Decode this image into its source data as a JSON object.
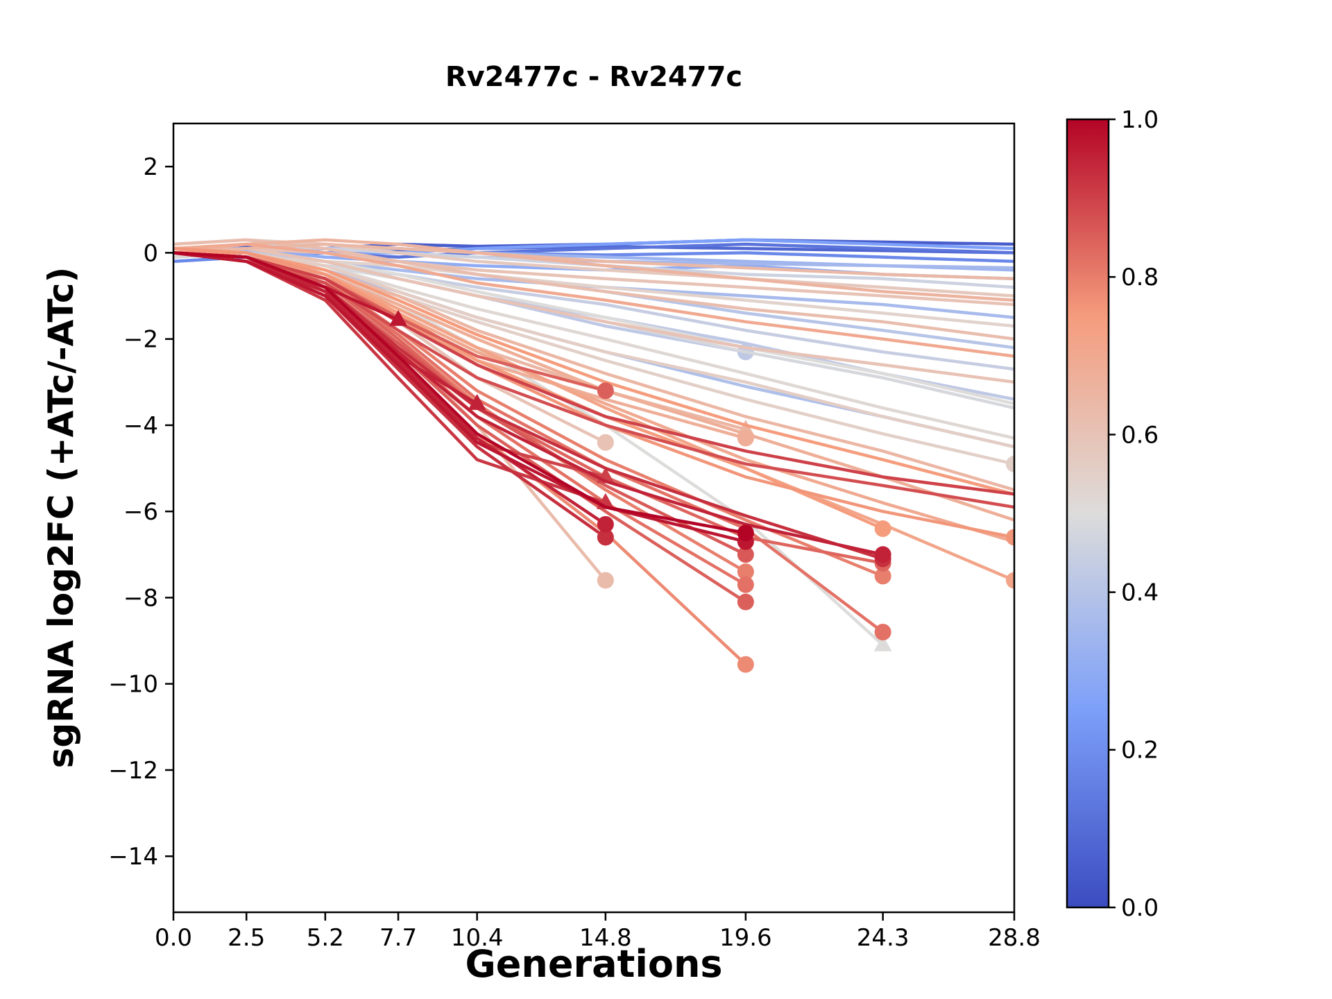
{
  "chart_data": {
    "type": "line",
    "title": "Rv2477c - Rv2477c",
    "xlabel": "Generations",
    "ylabel": "sgRNA log2FC (+ATc/-ATc)",
    "grid": false,
    "xlim": [
      0,
      28.8
    ],
    "ylim": [
      -15.3,
      3.0
    ],
    "x_ticks": [
      0.0,
      2.5,
      5.2,
      7.7,
      10.4,
      14.8,
      19.6,
      24.3,
      28.8
    ],
    "x_tick_labels": [
      "0.0",
      "2.5",
      "5.2",
      "7.7",
      "10.4",
      "14.8",
      "19.6",
      "24.3",
      "28.8"
    ],
    "y_ticks": [
      2,
      0,
      -2,
      -4,
      -6,
      -8,
      -10,
      -12,
      -14
    ],
    "y_tick_labels": [
      "2",
      "0",
      "−2",
      "−4",
      "−6",
      "−8",
      "−10",
      "−12",
      "−14"
    ],
    "colorbar": {
      "min": 0.0,
      "max": 1.0,
      "ticks": [
        0.0,
        0.2,
        0.4,
        0.6,
        0.8,
        1.0
      ],
      "tick_labels": [
        "0.0",
        "0.2",
        "0.4",
        "0.6",
        "0.8",
        "1.0"
      ],
      "colormap": "coolwarm"
    },
    "colormap_stops": [
      {
        "t": 0.0,
        "color": "#3b4cc0"
      },
      {
        "t": 0.25,
        "color": "#7c9ff9"
      },
      {
        "t": 0.5,
        "color": "#dddcdb"
      },
      {
        "t": 0.75,
        "color": "#f59c7d"
      },
      {
        "t": 1.0,
        "color": "#b40426"
      }
    ],
    "x": [
      0,
      2.5,
      5.2,
      7.7,
      10.4,
      14.8,
      19.6,
      24.3,
      28.8
    ],
    "series": [
      {
        "c": 0.05,
        "y": [
          0.1,
          0.15,
          0.1,
          0.2,
          0.15,
          0.2,
          0.3,
          0.25,
          0.2
        ]
      },
      {
        "c": 0.08,
        "y": [
          -0.1,
          0.0,
          0.1,
          0.05,
          0.1,
          0.15,
          0.1,
          0.05,
          0.0
        ]
      },
      {
        "c": 0.12,
        "y": [
          0.0,
          0.1,
          0.0,
          -0.1,
          0.0,
          0.1,
          0.2,
          0.1,
          0.0
        ]
      },
      {
        "c": 0.18,
        "y": [
          -0.2,
          -0.1,
          0.0,
          0.1,
          0.0,
          -0.05,
          0.0,
          -0.1,
          -0.2
        ]
      },
      {
        "c": 0.25,
        "y": [
          0.1,
          0.1,
          0.0,
          0.0,
          0.1,
          0.2,
          0.3,
          0.2,
          0.1
        ]
      },
      {
        "c": 0.3,
        "y": [
          0.0,
          0.1,
          -0.1,
          -0.2,
          -0.3,
          -0.4,
          -0.3,
          -0.5,
          -0.6
        ]
      },
      {
        "c": 0.33,
        "y": [
          0.0,
          0.0,
          0.1,
          0.1,
          0.0,
          -0.1,
          -0.2,
          -0.3,
          -0.4
        ]
      },
      {
        "c": 0.35,
        "y": [
          0.0,
          0.05,
          0.1,
          0.0,
          -0.1,
          -0.2,
          -0.25,
          -0.3,
          -0.35
        ]
      },
      {
        "c": 0.36,
        "y": [
          -0.1,
          0.0,
          -0.2,
          -0.4,
          -0.6,
          -0.8,
          -1.0,
          -1.2,
          -1.5
        ]
      },
      {
        "c": 0.38,
        "y": [
          0.0,
          -0.1,
          -0.4,
          -0.9,
          -1.5,
          -2.3,
          -3.1,
          -3.8,
          -4.5
        ]
      },
      {
        "c": 0.4,
        "y": [
          0.0,
          0.1,
          0.0,
          -0.2,
          -0.5,
          -0.9,
          -1.4,
          -1.8,
          -2.2
        ]
      },
      {
        "c": 0.42,
        "y": [
          0.1,
          0.0,
          -0.2,
          -0.6,
          -1.0,
          -1.5,
          -2.1,
          -2.8,
          -3.4
        ]
      },
      {
        "c": 0.42,
        "y": [
          0.0,
          0.0,
          -0.2,
          -0.6,
          -1.0,
          -1.7,
          -2.3
        ],
        "marker": "circle"
      },
      {
        "c": 0.44,
        "y": [
          0.0,
          -0.1,
          -0.3,
          -0.5,
          -0.8,
          -1.2,
          -1.8,
          -2.3,
          -2.7
        ]
      },
      {
        "c": 0.46,
        "y": [
          0.1,
          0.2,
          0.1,
          0.0,
          -0.1,
          -0.3,
          -0.5,
          -0.6,
          -0.8
        ]
      },
      {
        "c": 0.48,
        "y": [
          0.0,
          -0.1,
          -0.3,
          -0.6,
          -1.0,
          -1.6,
          -2.3,
          -2.9,
          -3.6
        ]
      },
      {
        "c": 0.5,
        "y": [
          0.0,
          0.1,
          -0.2,
          -0.5,
          -0.9,
          -1.5,
          -2.2,
          -2.8,
          -3.5
        ]
      },
      {
        "c": 0.5,
        "y": [
          0.0,
          -0.1,
          -0.4,
          -1.2,
          -2.2,
          -4.0,
          -6.2,
          -9.1
        ],
        "marker": "triangle"
      },
      {
        "c": 0.52,
        "y": [
          -0.1,
          0.0,
          -0.3,
          -0.8,
          -1.3,
          -2.0,
          -2.8,
          -3.6,
          -4.3
        ]
      },
      {
        "c": 0.54,
        "y": [
          0.0,
          -0.1,
          -0.2,
          -0.3,
          -0.5,
          -0.8,
          -1.1,
          -1.4,
          -1.7
        ]
      },
      {
        "c": 0.55,
        "y": [
          0.0,
          -0.2,
          -0.5,
          -1.0,
          -1.6,
          -2.5,
          -3.4,
          -4.2,
          -4.9
        ],
        "marker": "circle"
      },
      {
        "c": 0.56,
        "y": [
          0.1,
          0.0,
          -0.3,
          -0.9,
          -1.5,
          -2.3,
          -3.0,
          -3.8,
          -4.5
        ]
      },
      {
        "c": 0.58,
        "y": [
          0.2,
          0.3,
          0.2,
          0.0,
          -0.2,
          -0.4,
          -0.6,
          -0.8,
          -1.0
        ]
      },
      {
        "c": 0.6,
        "y": [
          0.0,
          0.1,
          -0.2,
          -0.6,
          -1.0,
          -1.6,
          -2.2,
          -2.6,
          -3.0
        ]
      },
      {
        "c": 0.6,
        "y": [
          0.0,
          0.1,
          0.0,
          -0.2,
          -0.4,
          -0.6,
          -0.8,
          -1.0,
          -1.2
        ]
      },
      {
        "c": 0.6,
        "y": [
          0.0,
          -0.1,
          -0.6,
          -1.6,
          -2.9,
          -4.4
        ],
        "marker": "circle"
      },
      {
        "c": 0.62,
        "y": [
          0.2,
          0.3,
          0.1,
          -0.2,
          -0.5,
          -0.9,
          -1.3,
          -1.6,
          -2.0
        ]
      },
      {
        "c": 0.63,
        "y": [
          0.0,
          -0.2,
          -0.8,
          -2.2,
          -4.0,
          -7.6
        ],
        "marker": "circle"
      },
      {
        "c": 0.64,
        "y": [
          0.0,
          0.1,
          0.2,
          0.1,
          0.0,
          -0.2,
          -0.35,
          -0.5,
          -0.6
        ]
      },
      {
        "c": 0.65,
        "y": [
          0.0,
          -0.1,
          -0.4,
          -1.0,
          -1.8,
          -2.8,
          -3.8,
          -4.6,
          -5.5
        ]
      },
      {
        "c": 0.65,
        "y": [
          0.0,
          -0.1,
          -0.5,
          -1.3,
          -2.2,
          -3.2,
          -4.1
        ],
        "marker": "triangle"
      },
      {
        "c": 0.66,
        "y": [
          0.0,
          0.2,
          0.3,
          0.2,
          0.0,
          -0.3,
          -0.6,
          -0.9,
          -1.1
        ]
      },
      {
        "c": 0.68,
        "y": [
          0.0,
          -0.2,
          -0.6,
          -1.5,
          -2.5,
          -3.4,
          -4.3
        ],
        "marker": "circle"
      },
      {
        "c": 0.68,
        "y": [
          0.0,
          0.0,
          -0.5,
          -1.2,
          -2.0,
          -3.2,
          -4.2,
          -5.2,
          -6.2
        ]
      },
      {
        "c": 0.7,
        "y": [
          0.0,
          -0.2,
          -0.6,
          -1.4,
          -2.3,
          -3.5,
          -4.8,
          -5.8,
          -6.7
        ]
      },
      {
        "c": 0.7,
        "y": [
          0.1,
          0.2,
          0.0,
          -0.3,
          -0.7,
          -1.1,
          -1.6,
          -2.0,
          -2.4
        ]
      },
      {
        "c": 0.72,
        "y": [
          0.0,
          -0.1,
          -0.5,
          -1.3,
          -2.2,
          -3.6,
          -5.0,
          -6.3,
          -7.6
        ],
        "marker": "circle"
      },
      {
        "c": 0.75,
        "y": [
          0.0,
          0.0,
          -0.4,
          -1.1,
          -1.9,
          -3.0,
          -4.0,
          -4.8,
          -5.6
        ]
      },
      {
        "c": 0.75,
        "y": [
          0.0,
          0.0,
          -0.5,
          -1.4,
          -2.5,
          -3.8,
          -5.0,
          -6.4
        ],
        "marker": "circle"
      },
      {
        "c": 0.76,
        "y": [
          0.1,
          0.0,
          -0.5,
          -1.5,
          -2.6,
          -4.0,
          -5.2,
          -6.0,
          -6.6
        ],
        "marker": "circle"
      },
      {
        "c": 0.78,
        "y": [
          0.0,
          -0.2,
          -0.9,
          -2.4,
          -4.2,
          -6.5,
          -9.55
        ],
        "marker": "circle"
      },
      {
        "c": 0.8,
        "y": [
          0.0,
          -0.1,
          -0.7,
          -2.0,
          -3.5,
          -5.5,
          -7.4
        ],
        "marker": "circle"
      },
      {
        "c": 0.8,
        "y": [
          0.0,
          -0.1,
          -0.6,
          -1.8,
          -3.2,
          -4.8,
          -6.2,
          -7.5
        ],
        "marker": "circle"
      },
      {
        "c": 0.82,
        "y": [
          0.0,
          -0.2,
          -0.8,
          -2.2,
          -3.8,
          -5.8,
          -7.7
        ],
        "marker": "circle"
      },
      {
        "c": 0.82,
        "y": [
          0.0,
          -0.2,
          -0.7,
          -1.9,
          -3.4,
          -5.0,
          -6.4,
          -8.8
        ],
        "marker": "circle"
      },
      {
        "c": 0.84,
        "y": [
          0.0,
          -0.1,
          -0.7,
          -2.0,
          -3.6,
          -5.2,
          -6.6,
          -7.2
        ],
        "marker": "circle"
      },
      {
        "c": 0.85,
        "y": [
          0.0,
          -0.1,
          -0.6,
          -1.5,
          -2.4,
          -3.2
        ],
        "marker": "circle"
      },
      {
        "c": 0.85,
        "y": [
          0.0,
          -0.1,
          -0.8,
          -2.3,
          -4.0,
          -6.0,
          -8.1
        ],
        "marker": "circle"
      },
      {
        "c": 0.86,
        "y": [
          0.0,
          -0.2,
          -0.8,
          -2.1,
          -3.6,
          -5.4,
          -7.0
        ],
        "marker": "circle"
      },
      {
        "c": 0.88,
        "y": [
          0.0,
          -0.2,
          -0.7,
          -1.8,
          -2.9,
          -4.0,
          -4.9,
          -5.4,
          -5.9
        ]
      },
      {
        "c": 0.9,
        "y": [
          0.0,
          -0.1,
          -0.6,
          -1.6,
          -2.6,
          -3.8,
          -4.6,
          -5.2,
          -5.6
        ]
      },
      {
        "c": 0.9,
        "y": [
          0.0,
          -0.1,
          -0.9,
          -2.6,
          -4.4,
          -5.2
        ],
        "marker": "triangle"
      },
      {
        "c": 0.92,
        "y": [
          0.0,
          -0.2,
          -1.1,
          -2.9,
          -4.8,
          -5.8
        ],
        "marker": "triangle"
      },
      {
        "c": 0.93,
        "y": [
          0.0,
          -0.2,
          -1.0,
          -2.7,
          -4.5,
          -6.6
        ],
        "marker": "circle"
      },
      {
        "c": 0.93,
        "y": [
          0.0,
          -0.1,
          -0.8,
          -2.2,
          -3.6,
          -5.0,
          -6.1,
          -7.1
        ],
        "marker": "circle"
      },
      {
        "c": 0.95,
        "y": [
          0.0,
          -0.2,
          -1.0,
          -2.4,
          -3.5
        ],
        "marker": "triangle"
      },
      {
        "c": 0.95,
        "y": [
          0.0,
          -0.1,
          -0.9,
          -2.5,
          -4.3,
          -6.3
        ],
        "marker": "circle"
      },
      {
        "c": 0.95,
        "y": [
          0.0,
          -0.2,
          -0.9,
          -2.3,
          -3.8,
          -5.3,
          -6.3,
          -7.0
        ],
        "marker": "circle"
      },
      {
        "c": 0.97,
        "y": [
          0.0,
          -0.1,
          -0.8,
          -1.55
        ],
        "marker": "triangle"
      },
      {
        "c": 0.97,
        "y": [
          0.0,
          -0.2,
          -1.0,
          -2.6,
          -4.4,
          -5.9,
          -6.7
        ],
        "marker": "circle"
      },
      {
        "c": 1.0,
        "y": [
          0.0,
          -0.1,
          -0.8,
          -2.4,
          -4.2,
          -5.9,
          -6.5
        ],
        "marker": "circle"
      }
    ]
  }
}
